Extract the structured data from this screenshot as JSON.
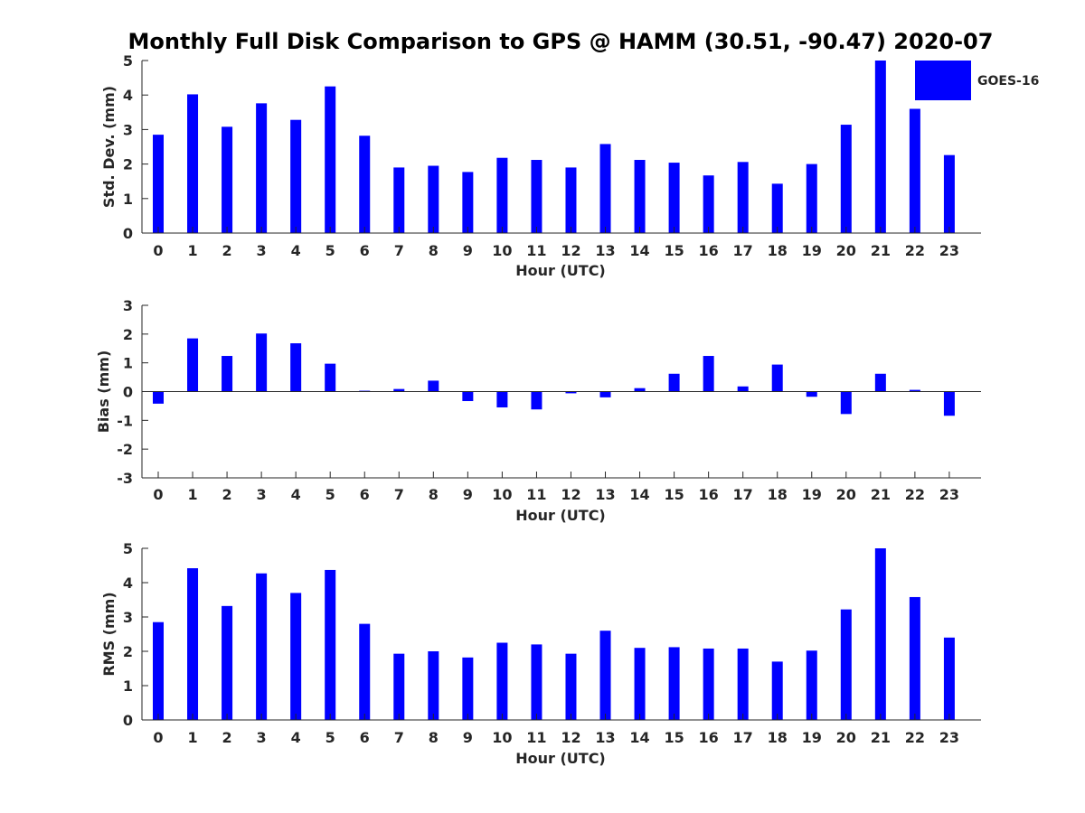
{
  "figure_title": "Monthly Full Disk Comparison to GPS @ HAMM (30.51, -90.47) 2020-07",
  "legend": {
    "label": "GOES-16",
    "color": "#0000ff"
  },
  "chart_data": [
    {
      "type": "bar",
      "xlabel": "Hour (UTC)",
      "ylabel": "Std. Dev. (mm)",
      "ylim": [
        0,
        5
      ],
      "yticks": [
        "0",
        "1",
        "2",
        "3",
        "4",
        "5"
      ],
      "categories": [
        "0",
        "1",
        "2",
        "3",
        "4",
        "5",
        "6",
        "7",
        "8",
        "9",
        "10",
        "11",
        "12",
        "13",
        "14",
        "15",
        "16",
        "17",
        "18",
        "19",
        "20",
        "21",
        "22",
        "23"
      ],
      "series": [
        {
          "name": "GOES-16",
          "color": "#0000ff",
          "values": [
            2.85,
            4.02,
            3.08,
            3.76,
            3.28,
            4.25,
            2.82,
            1.9,
            1.95,
            1.77,
            2.18,
            2.12,
            1.9,
            2.58,
            2.12,
            2.04,
            1.67,
            2.06,
            1.43,
            2.0,
            3.14,
            5.0,
            3.6,
            2.26
          ]
        }
      ],
      "legend": "top-right",
      "grid": false
    },
    {
      "type": "bar",
      "xlabel": "Hour (UTC)",
      "ylabel": "Bias (mm)",
      "ylim": [
        -3,
        3
      ],
      "yticks": [
        "-3",
        "-2",
        "-1",
        "0",
        "1",
        "2",
        "3"
      ],
      "categories": [
        "0",
        "1",
        "2",
        "3",
        "4",
        "5",
        "6",
        "7",
        "8",
        "9",
        "10",
        "11",
        "12",
        "13",
        "14",
        "15",
        "16",
        "17",
        "18",
        "19",
        "20",
        "21",
        "22",
        "23"
      ],
      "series": [
        {
          "name": "GOES-16",
          "color": "#0000ff",
          "values": [
            -0.42,
            1.85,
            1.24,
            2.02,
            1.68,
            0.97,
            0.03,
            0.09,
            0.38,
            -0.33,
            -0.55,
            -0.62,
            -0.06,
            -0.2,
            0.12,
            0.62,
            1.24,
            0.18,
            0.94,
            -0.18,
            -0.78,
            0.62,
            0.06,
            -0.84
          ]
        }
      ],
      "grid": false
    },
    {
      "type": "bar",
      "xlabel": "Hour (UTC)",
      "ylabel": "RMS (mm)",
      "ylim": [
        0,
        5
      ],
      "yticks": [
        "0",
        "1",
        "2",
        "3",
        "4",
        "5"
      ],
      "categories": [
        "0",
        "1",
        "2",
        "3",
        "4",
        "5",
        "6",
        "7",
        "8",
        "9",
        "10",
        "11",
        "12",
        "13",
        "14",
        "15",
        "16",
        "17",
        "18",
        "19",
        "20",
        "21",
        "22",
        "23"
      ],
      "series": [
        {
          "name": "GOES-16",
          "color": "#0000ff",
          "values": [
            2.85,
            4.42,
            3.32,
            4.27,
            3.7,
            4.37,
            2.8,
            1.93,
            2.0,
            1.82,
            2.25,
            2.2,
            1.93,
            2.6,
            2.1,
            2.12,
            2.08,
            2.08,
            1.7,
            2.02,
            3.22,
            5.0,
            3.58,
            2.4
          ]
        }
      ],
      "grid": false
    }
  ]
}
